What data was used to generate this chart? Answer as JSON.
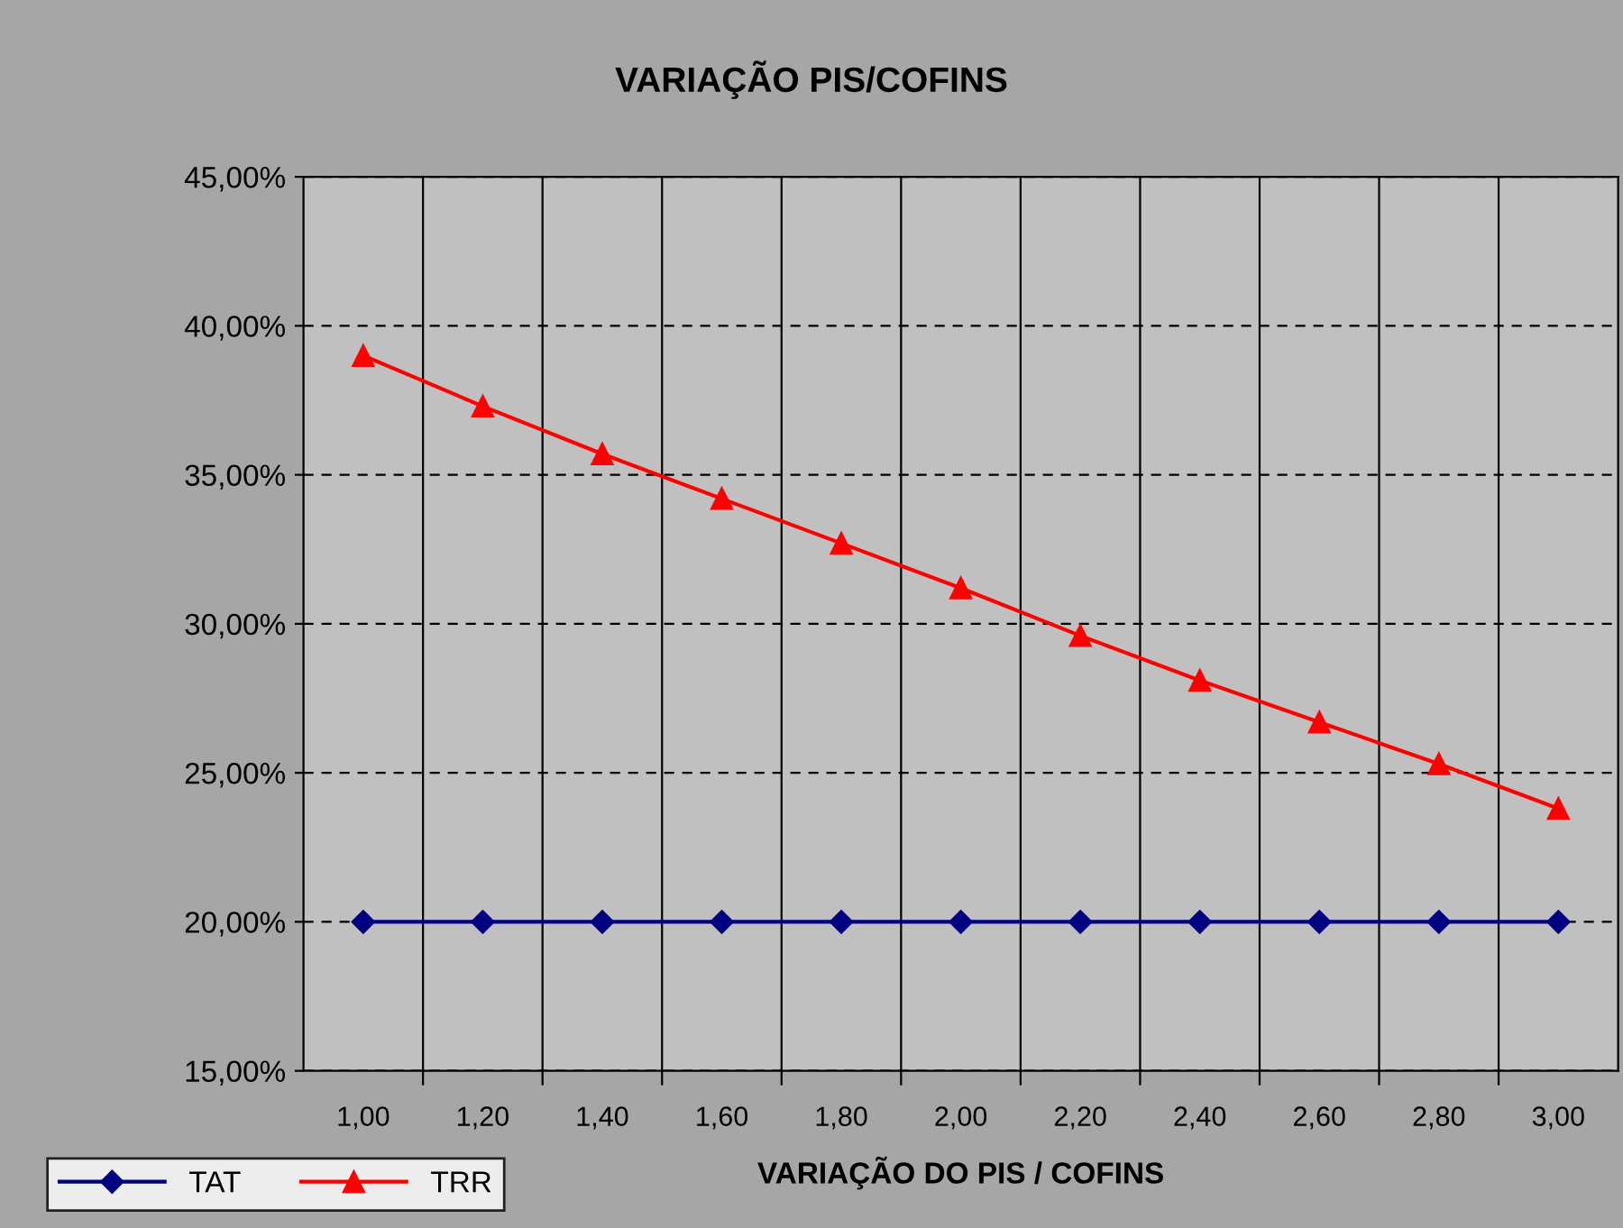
{
  "chart_data": {
    "type": "line",
    "title": "VARIAÇÃO PIS/COFINS",
    "xlabel": "VARIAÇÃO DO PIS / COFINS",
    "categories": [
      "1,00",
      "1,20",
      "1,40",
      "1,60",
      "1,80",
      "2,00",
      "2,20",
      "2,40",
      "2,60",
      "2,80",
      "3,00"
    ],
    "series": [
      {
        "name": "TAT",
        "color": "#000080",
        "marker": "diamond",
        "values": [
          20,
          20,
          20,
          20,
          20,
          20,
          20,
          20,
          20,
          20,
          20
        ]
      },
      {
        "name": "TRR",
        "color": "#ff0000",
        "marker": "triangle",
        "values": [
          39.0,
          37.3,
          35.7,
          34.2,
          32.7,
          31.2,
          29.6,
          28.1,
          26.7,
          25.3,
          23.8
        ]
      }
    ],
    "ylim": [
      15,
      45
    ],
    "yticks": [
      {
        "value": 15,
        "label": "15,00%"
      },
      {
        "value": 20,
        "label": "20,00%"
      },
      {
        "value": 25,
        "label": "25,00%"
      },
      {
        "value": 30,
        "label": "30,00%"
      },
      {
        "value": 35,
        "label": "35,00%"
      },
      {
        "value": 40,
        "label": "40,00%"
      },
      {
        "value": 45,
        "label": "45,00%"
      }
    ],
    "grid": true,
    "legend": "bottom left",
    "line_style": "solid"
  }
}
